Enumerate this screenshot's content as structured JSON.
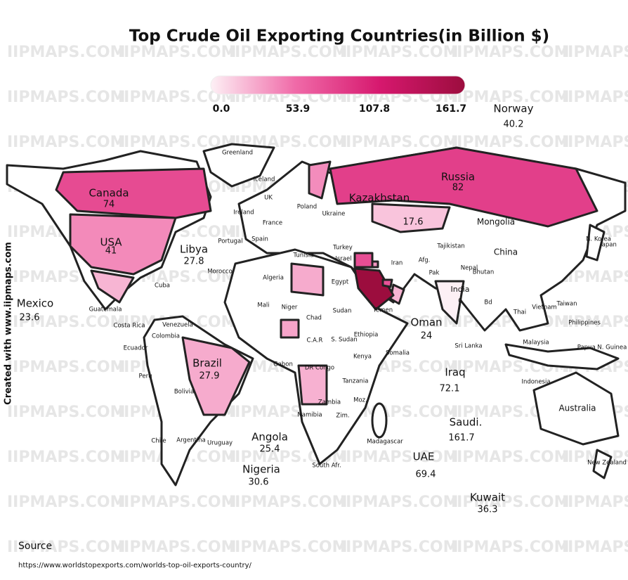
{
  "title": "Top Crude Oil Exporting Countries(in Billion $)",
  "watermark": "IIPMAPS.COM",
  "credit": "Created with www.iipmaps.com",
  "legend": {
    "ticks": [
      {
        "value": 0,
        "label": "0.0"
      },
      53.9,
      107.8,
      161.7
    ],
    "colors": [
      "#fdf0f5",
      "#f06aa8",
      "#d6186e",
      "#9c0d3e"
    ]
  },
  "exporters": [
    {
      "name": "Norway",
      "value": 40.2
    },
    {
      "name": "Russia",
      "value": 82
    },
    {
      "name": "Kazakhstan",
      "value": 17.6
    },
    {
      "name": "Canada",
      "value": 74
    },
    {
      "name": "USA",
      "value": 41
    },
    {
      "name": "Libya",
      "value": 27.8
    },
    {
      "name": "Mexico",
      "value": 23.6
    },
    {
      "name": "Brazil",
      "value": 27.9
    },
    {
      "name": "Angola",
      "value": 25.4
    },
    {
      "name": "Nigeria",
      "value": 30.6
    },
    {
      "name": "Oman",
      "value": 24
    },
    {
      "name": "Iraq",
      "value": 72.1
    },
    {
      "name": "Saudi.",
      "value": 161.7
    },
    {
      "name": "UAE",
      "value": 69.4
    },
    {
      "name": "Kuwait",
      "value": 36.3
    },
    {
      "name": "India",
      "value": 0
    }
  ],
  "map_labels": [
    "Greenland",
    "Iceland",
    "UK",
    "Ireland",
    "France",
    "Poland",
    "Ukraine",
    "Spain",
    "Portugal",
    "Morocco",
    "Algeria",
    "Tunisia",
    "Turkey",
    "Israel",
    "Egypt",
    "Iran",
    "Afg.",
    "Pak",
    "Nepal",
    "Bhutan",
    "Tajikistan",
    "Mongolia",
    "China",
    "N. Korea",
    "Japan",
    "Taiwan",
    "Philippines",
    "Vietnam",
    "Thai",
    "Malaysia",
    "Indonesia",
    "Papua N. Guinea",
    "Australia",
    "New Zealand",
    "Sri Lanka",
    "Bd",
    "Yemen",
    "Sudan",
    "Chad",
    "Niger",
    "Mali",
    "Ethiopia",
    "S. Sudan",
    "Somalia",
    "Kenya",
    "Tanzania",
    "DR Congo",
    "Gabon",
    "C.A.R",
    "Zambia",
    "Zim.",
    "Moz.",
    "Namibia",
    "South Afr.",
    "Madagascar",
    "Cuba",
    "Guatemala",
    "Costa Rica",
    "Venezuela",
    "Colombia",
    "Ecuador",
    "Peru",
    "Bolivia",
    "Chile",
    "Argentina",
    "Uruguay"
  ],
  "source": {
    "label": "Source",
    "url": "https://www.worldstopexports.com/worlds-top-oil-exports-country/"
  }
}
